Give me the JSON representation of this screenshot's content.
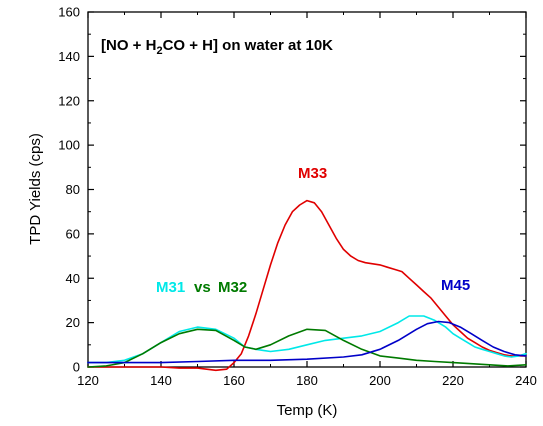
{
  "chart_data": {
    "type": "line",
    "title": "",
    "xlabel": "Temp (K)",
    "ylabel": "TPD Yields (cps)",
    "xlim": [
      120,
      240
    ],
    "ylim": [
      0,
      160
    ],
    "xticks": [
      120,
      140,
      160,
      180,
      200,
      220,
      240
    ],
    "yticks": [
      0,
      20,
      40,
      60,
      80,
      100,
      120,
      140,
      160
    ],
    "grid": false,
    "legend": "none",
    "annotation": {
      "parts": [
        "[NO  + H",
        "2",
        "CO + H] on water at 10K"
      ]
    },
    "labels": {
      "m31": "M31",
      "vs": "vs",
      "m32": "M32",
      "m33": "M33",
      "m45": "M45"
    },
    "series": [
      {
        "name": "M33",
        "color": "#e00000",
        "x": [
          120,
          125,
          130,
          135,
          140,
          145,
          150,
          155,
          158,
          160,
          162,
          164,
          166,
          168,
          170,
          172,
          174,
          176,
          178,
          180,
          182,
          184,
          186,
          188,
          190,
          192,
          194,
          196,
          198,
          200,
          202,
          204,
          206,
          208,
          210,
          212,
          214,
          216,
          218,
          220,
          222,
          224,
          226,
          228,
          230,
          232,
          234,
          236,
          238,
          240
        ],
        "y": [
          0,
          0,
          0,
          0,
          0,
          -0.5,
          -0.5,
          -1.5,
          -1,
          2,
          6,
          14,
          24,
          35,
          46,
          56,
          64,
          70,
          73,
          75,
          74,
          70,
          64,
          58,
          53,
          50,
          48,
          47,
          46.5,
          46,
          45,
          44,
          43,
          40,
          37,
          34,
          31,
          27,
          23,
          19,
          16,
          13,
          11,
          9,
          7.5,
          6.5,
          5.5,
          5,
          5,
          5
        ]
      },
      {
        "name": "M31",
        "color": "#00e8e8",
        "x": [
          120,
          125,
          130,
          135,
          140,
          145,
          150,
          155,
          160,
          163,
          166,
          168,
          170,
          175,
          180,
          185,
          190,
          195,
          200,
          205,
          208,
          210,
          212,
          215,
          218,
          220,
          222,
          224,
          226,
          228,
          230,
          232,
          234,
          236,
          238,
          240
        ],
        "y": [
          2,
          2,
          3,
          6,
          11,
          16,
          18,
          17,
          13,
          9,
          8,
          7.5,
          7,
          8,
          10,
          12,
          13,
          14,
          16,
          20,
          23,
          23,
          23,
          21,
          18,
          15,
          13,
          11,
          9,
          8,
          7,
          6,
          5,
          4.5,
          5,
          6
        ]
      },
      {
        "name": "M32",
        "color": "#007a00",
        "x": [
          120,
          125,
          130,
          135,
          140,
          145,
          150,
          155,
          160,
          163,
          166,
          170,
          175,
          180,
          185,
          190,
          195,
          200,
          205,
          210,
          215,
          220,
          225,
          230,
          235,
          240
        ],
        "y": [
          0,
          0.5,
          2,
          6,
          11,
          15,
          17,
          16.5,
          12,
          9,
          8,
          10,
          14,
          17,
          16.5,
          12,
          8,
          5,
          4,
          3,
          2.5,
          2,
          1.5,
          1,
          0.5,
          1
        ]
      },
      {
        "name": "M45",
        "color": "#0000c8",
        "x": [
          120,
          130,
          140,
          150,
          160,
          170,
          180,
          190,
          195,
          200,
          205,
          210,
          213,
          216,
          219,
          222,
          225,
          228,
          231,
          234,
          237,
          240
        ],
        "y": [
          2,
          2,
          2,
          2.5,
          3,
          3,
          3.5,
          4.5,
          5.5,
          8,
          12,
          17,
          19.5,
          20.5,
          20,
          18,
          15,
          12,
          9,
          7,
          5.5,
          5
        ]
      }
    ]
  }
}
